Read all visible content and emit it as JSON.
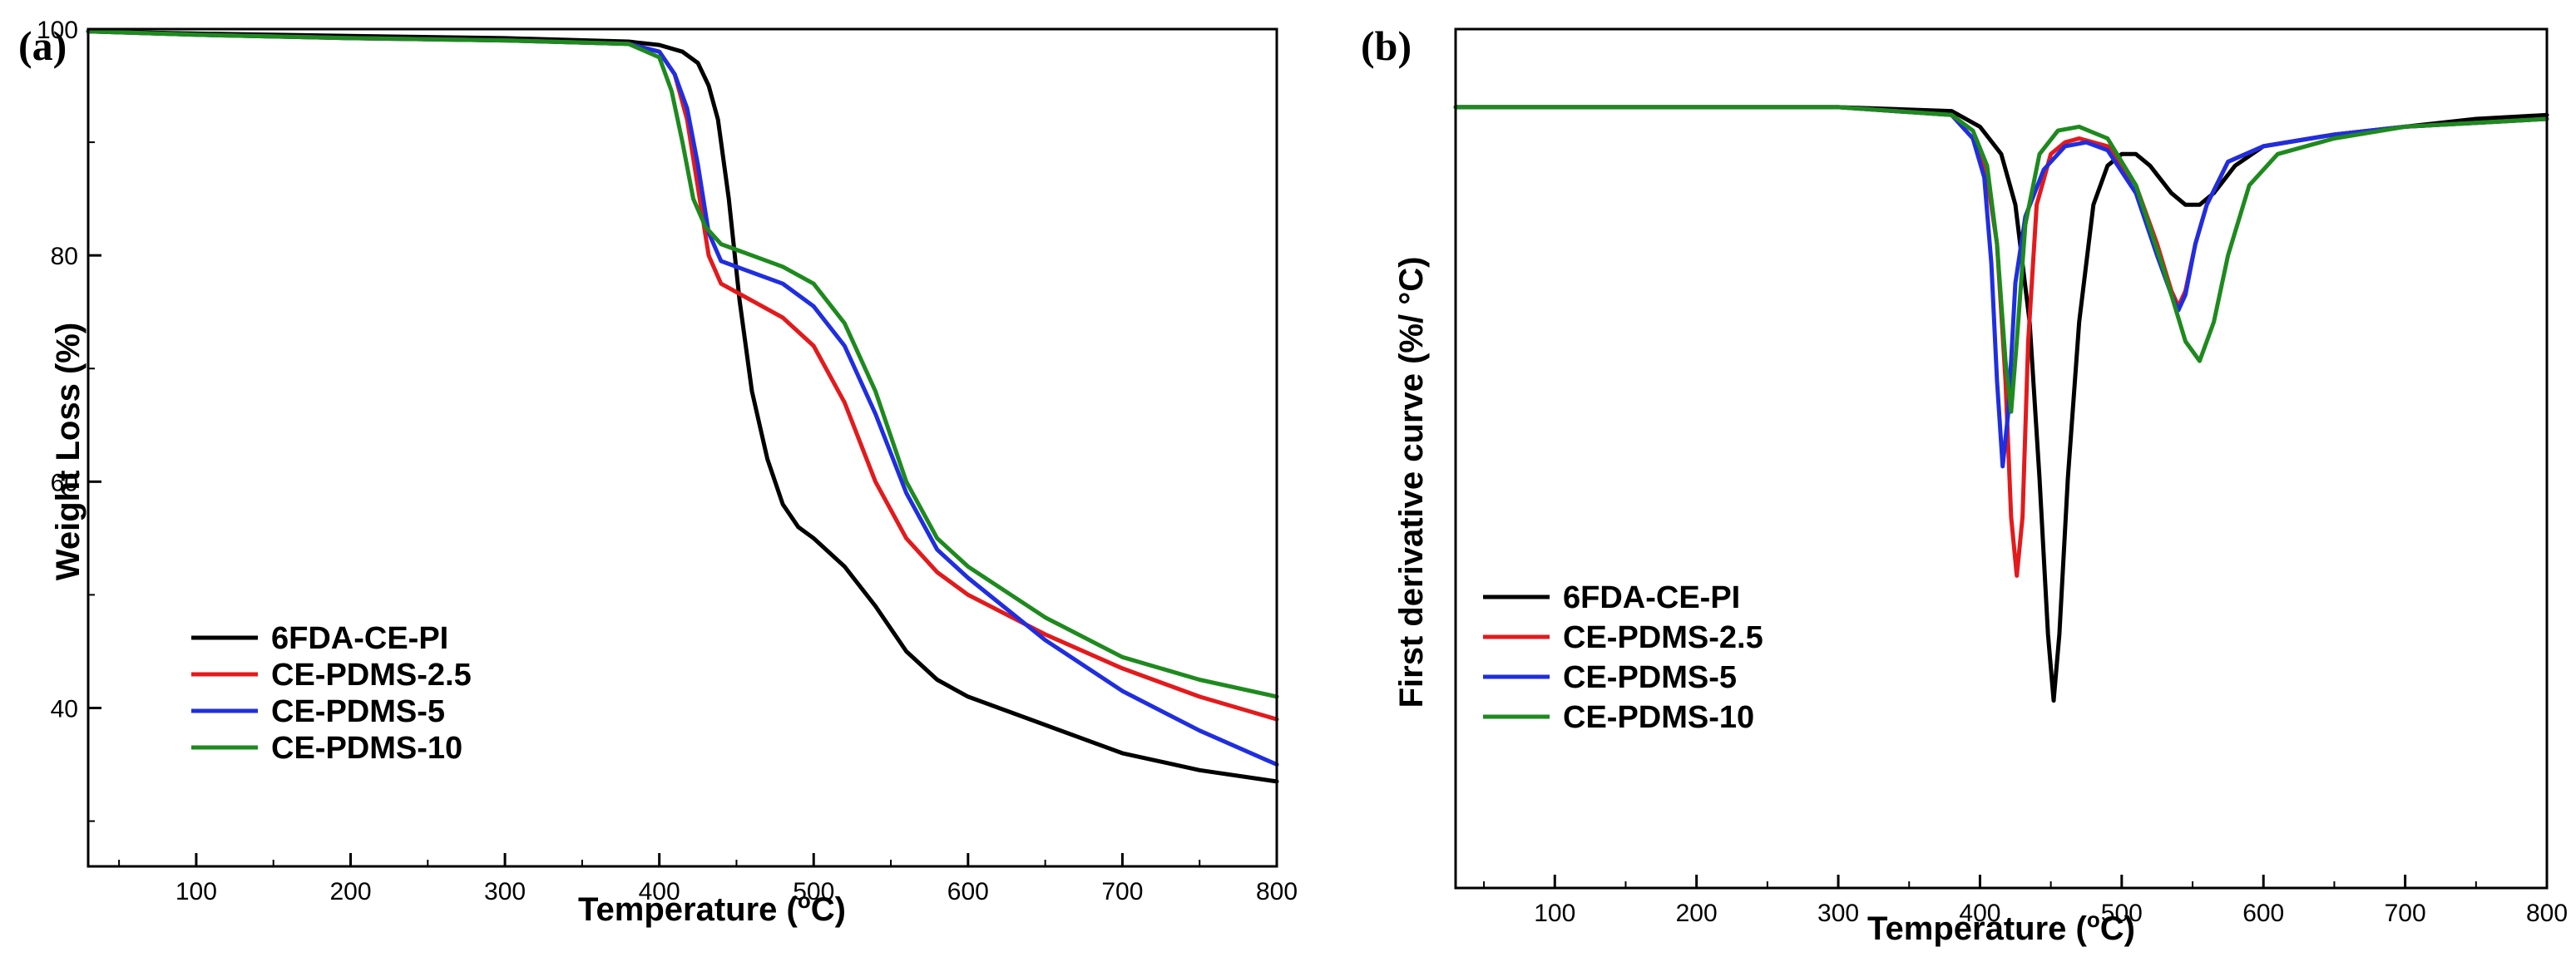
{
  "chart_data": [
    {
      "type": "line",
      "panel_label": "(a)",
      "title": "",
      "xlabel_main": "Temperature (",
      "xlabel_sup": "o",
      "xlabel_end": "C)",
      "ylabel": "Weight Loss (%)",
      "xlim": [
        30,
        800
      ],
      "ylim": [
        26,
        100
      ],
      "xticks": [
        100,
        200,
        300,
        400,
        500,
        600,
        700,
        800
      ],
      "yticks": [
        40,
        60,
        80,
        100
      ],
      "grid": false,
      "legend_position": "bottom-left",
      "series": [
        {
          "name": "6FDA-CE-PI",
          "color": "#000000",
          "x": [
            30,
            100,
            200,
            300,
            380,
            400,
            415,
            425,
            432,
            438,
            445,
            452,
            460,
            470,
            480,
            490,
            500,
            520,
            540,
            560,
            580,
            600,
            650,
            700,
            750,
            800
          ],
          "y": [
            99.8,
            99.6,
            99.4,
            99.2,
            98.9,
            98.6,
            98,
            97,
            95,
            92,
            85,
            76,
            68,
            62,
            58,
            56,
            55,
            52.5,
            49,
            45,
            42.5,
            41,
            38.5,
            36,
            34.5,
            33.5
          ]
        },
        {
          "name": "CE-PDMS-2.5",
          "color": "#e31a1c",
          "x": [
            30,
            100,
            200,
            300,
            380,
            400,
            410,
            418,
            425,
            432,
            440,
            460,
            480,
            500,
            520,
            540,
            560,
            580,
            600,
            650,
            700,
            750,
            800
          ],
          "y": [
            99.8,
            99.5,
            99.2,
            99,
            98.7,
            98,
            96,
            92,
            86,
            80,
            77.5,
            76,
            74.5,
            72,
            67,
            60,
            55,
            52,
            50,
            46.5,
            43.5,
            41,
            39
          ]
        },
        {
          "name": "CE-PDMS-5",
          "color": "#1f2ee0",
          "x": [
            30,
            100,
            200,
            300,
            380,
            400,
            410,
            418,
            425,
            432,
            440,
            460,
            480,
            500,
            520,
            540,
            560,
            580,
            600,
            650,
            700,
            750,
            800
          ],
          "y": [
            99.8,
            99.5,
            99.2,
            99,
            98.7,
            98,
            96,
            93,
            88,
            82,
            79.5,
            78.5,
            77.5,
            75.5,
            72,
            66,
            59,
            54,
            51.5,
            46,
            41.5,
            38,
            35
          ]
        },
        {
          "name": "CE-PDMS-10",
          "color": "#1e8a1e",
          "x": [
            30,
            100,
            200,
            300,
            380,
            400,
            408,
            415,
            422,
            430,
            440,
            460,
            480,
            500,
            520,
            540,
            560,
            580,
            600,
            650,
            700,
            750,
            800
          ],
          "y": [
            99.8,
            99.5,
            99.2,
            99,
            98.7,
            97.5,
            94.5,
            90,
            85,
            82.5,
            81,
            80,
            79,
            77.5,
            74,
            68,
            60,
            55,
            52.5,
            48,
            44.5,
            42.5,
            41
          ]
        }
      ]
    },
    {
      "type": "line",
      "panel_label": "(b)",
      "title": "",
      "xlabel_main": "Temperature (",
      "xlabel_sup": "o",
      "xlabel_end": "C)",
      "ylabel": "First derivative curve (%/ °C)",
      "xlim": [
        30,
        800
      ],
      "ylim": [
        -2.0,
        0.2
      ],
      "xticks": [
        100,
        200,
        300,
        400,
        500,
        600,
        700,
        800
      ],
      "yticks": [],
      "grid": false,
      "legend_position": "bottom-left",
      "series": [
        {
          "name": "6FDA-CE-PI",
          "color": "#000000",
          "x": [
            30,
            100,
            200,
            300,
            380,
            400,
            415,
            425,
            435,
            442,
            448,
            452,
            456,
            462,
            470,
            480,
            490,
            500,
            510,
            520,
            535,
            545,
            555,
            565,
            580,
            600,
            650,
            700,
            750,
            800
          ],
          "y": [
            0.0,
            0.0,
            0.0,
            0.0,
            -0.01,
            -0.05,
            -0.12,
            -0.25,
            -0.55,
            -0.95,
            -1.35,
            -1.52,
            -1.35,
            -0.95,
            -0.55,
            -0.25,
            -0.15,
            -0.12,
            -0.12,
            -0.15,
            -0.22,
            -0.25,
            -0.25,
            -0.22,
            -0.15,
            -0.1,
            -0.07,
            -0.05,
            -0.03,
            -0.02
          ]
        },
        {
          "name": "CE-PDMS-2.5",
          "color": "#e31a1c",
          "x": [
            30,
            100,
            200,
            300,
            380,
            395,
            405,
            412,
            418,
            422,
            426,
            430,
            434,
            440,
            450,
            460,
            470,
            490,
            510,
            525,
            535,
            540,
            545,
            552,
            560,
            575,
            600,
            650,
            700,
            750,
            800
          ],
          "y": [
            0.0,
            0.0,
            0.0,
            0.0,
            -0.02,
            -0.08,
            -0.18,
            -0.35,
            -0.7,
            -1.05,
            -1.2,
            -1.05,
            -0.6,
            -0.25,
            -0.12,
            -0.09,
            -0.08,
            -0.1,
            -0.2,
            -0.35,
            -0.47,
            -0.51,
            -0.47,
            -0.35,
            -0.25,
            -0.14,
            -0.1,
            -0.07,
            -0.05,
            -0.04,
            -0.03
          ]
        },
        {
          "name": "CE-PDMS-5",
          "color": "#1f2ee0",
          "x": [
            30,
            100,
            200,
            300,
            380,
            395,
            403,
            408,
            412,
            416,
            420,
            425,
            432,
            445,
            460,
            475,
            490,
            510,
            525,
            535,
            540,
            545,
            552,
            560,
            575,
            600,
            650,
            700,
            750,
            800
          ],
          "y": [
            0.0,
            0.0,
            0.0,
            0.0,
            -0.02,
            -0.08,
            -0.18,
            -0.4,
            -0.7,
            -0.92,
            -0.78,
            -0.45,
            -0.28,
            -0.16,
            -0.1,
            -0.09,
            -0.11,
            -0.22,
            -0.38,
            -0.48,
            -0.52,
            -0.48,
            -0.35,
            -0.25,
            -0.14,
            -0.1,
            -0.07,
            -0.05,
            -0.04,
            -0.03
          ]
        },
        {
          "name": "CE-PDMS-10",
          "color": "#1e8a1e",
          "x": [
            30,
            100,
            200,
            300,
            380,
            395,
            405,
            412,
            418,
            422,
            426,
            432,
            442,
            455,
            470,
            490,
            510,
            530,
            545,
            555,
            565,
            575,
            590,
            610,
            650,
            700,
            750,
            800
          ],
          "y": [
            0.0,
            0.0,
            0.0,
            0.0,
            -0.02,
            -0.06,
            -0.15,
            -0.35,
            -0.65,
            -0.78,
            -0.6,
            -0.3,
            -0.12,
            -0.06,
            -0.05,
            -0.08,
            -0.2,
            -0.42,
            -0.6,
            -0.65,
            -0.55,
            -0.38,
            -0.2,
            -0.12,
            -0.08,
            -0.05,
            -0.04,
            -0.03
          ]
        }
      ]
    }
  ]
}
